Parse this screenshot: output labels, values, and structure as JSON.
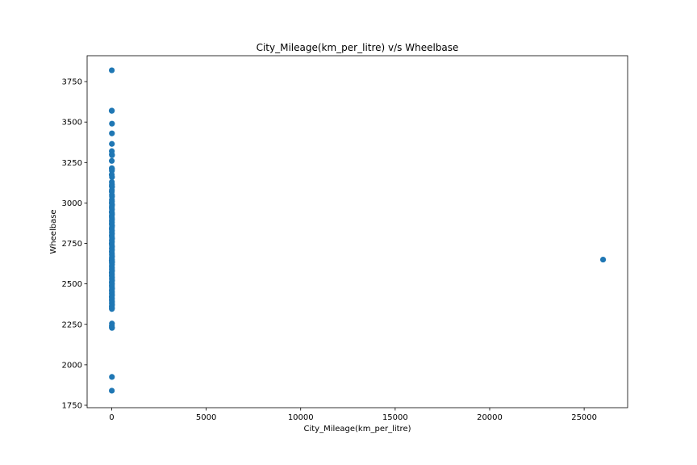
{
  "chart_data": {
    "type": "scatter",
    "title": "City_Mileage(km_per_litre) v/s Wheelbase",
    "xlabel": "City_Mileage(km_per_litre)",
    "ylabel": "Wheelbase",
    "xlim": [
      -1300,
      27300
    ],
    "ylim": [
      1735,
      3910
    ],
    "xticks": [
      0,
      5000,
      10000,
      15000,
      20000,
      25000
    ],
    "yticks": [
      1750,
      2000,
      2250,
      2500,
      2750,
      3000,
      3250,
      3500,
      3750
    ],
    "grid": false,
    "marker_color": "#1f77b4",
    "series": [
      {
        "points": [
          [
            5,
            3820
          ],
          [
            2,
            3570
          ],
          [
            8,
            3570
          ],
          [
            15,
            3490
          ],
          [
            12,
            3430
          ],
          [
            10,
            3365
          ],
          [
            6,
            3320
          ],
          [
            9,
            3300
          ],
          [
            18,
            3295
          ],
          [
            4,
            3260
          ],
          [
            7,
            3215
          ],
          [
            14,
            3210
          ],
          [
            11,
            3200
          ],
          [
            3,
            3175
          ],
          [
            16,
            3160
          ],
          [
            8,
            3130
          ],
          [
            13,
            3115
          ],
          [
            6,
            3105
          ],
          [
            19,
            3100
          ],
          [
            10,
            3080
          ],
          [
            5,
            3070
          ],
          [
            12,
            3050
          ],
          [
            17,
            3040
          ],
          [
            9,
            3020
          ],
          [
            14,
            3010
          ],
          [
            4,
            3000
          ],
          [
            20,
            2990
          ],
          [
            11,
            2980
          ],
          [
            7,
            2970
          ],
          [
            15,
            2960
          ],
          [
            3,
            2945
          ],
          [
            12,
            2940
          ],
          [
            18,
            2930
          ],
          [
            6,
            2920
          ],
          [
            10,
            2910
          ],
          [
            16,
            2900
          ],
          [
            8,
            2890
          ],
          [
            13,
            2880
          ],
          [
            5,
            2870
          ],
          [
            19,
            2860
          ],
          [
            11,
            2850
          ],
          [
            4,
            2840
          ],
          [
            15,
            2830
          ],
          [
            9,
            2820
          ],
          [
            17,
            2810
          ],
          [
            6,
            2800
          ],
          [
            12,
            2790
          ],
          [
            20,
            2780
          ],
          [
            7,
            2770
          ],
          [
            14,
            2760
          ],
          [
            3,
            2750
          ],
          [
            10,
            2740
          ],
          [
            18,
            2730
          ],
          [
            8,
            2720
          ],
          [
            16,
            2710
          ],
          [
            5,
            2700
          ],
          [
            13,
            2690
          ],
          [
            11,
            2680
          ],
          [
            19,
            2670
          ],
          [
            6,
            2660
          ],
          [
            15,
            2650
          ],
          [
            4,
            2645
          ],
          [
            12,
            2640
          ],
          [
            21,
            2635
          ],
          [
            9,
            2630
          ],
          [
            17,
            2620
          ],
          [
            7,
            2610
          ],
          [
            14,
            2600
          ],
          [
            10,
            2590
          ],
          [
            18,
            2580
          ],
          [
            5,
            2570
          ],
          [
            13,
            2560
          ],
          [
            8,
            2550
          ],
          [
            16,
            2540
          ],
          [
            11,
            2530
          ],
          [
            20,
            2520
          ],
          [
            6,
            2510
          ],
          [
            15,
            2500
          ],
          [
            9,
            2490
          ],
          [
            12,
            2480
          ],
          [
            18,
            2470
          ],
          [
            7,
            2460
          ],
          [
            14,
            2450
          ],
          [
            10,
            2440
          ],
          [
            17,
            2430
          ],
          [
            5,
            2420
          ],
          [
            13,
            2410
          ],
          [
            8,
            2400
          ],
          [
            16,
            2390
          ],
          [
            11,
            2380
          ],
          [
            19,
            2370
          ],
          [
            6,
            2360
          ],
          [
            15,
            2350
          ],
          [
            9,
            2345
          ],
          [
            14,
            2255
          ],
          [
            7,
            2240
          ],
          [
            11,
            2230
          ],
          [
            16,
            2228
          ],
          [
            12,
            1925
          ],
          [
            6,
            1840
          ],
          [
            26000,
            2650
          ]
        ]
      }
    ]
  }
}
